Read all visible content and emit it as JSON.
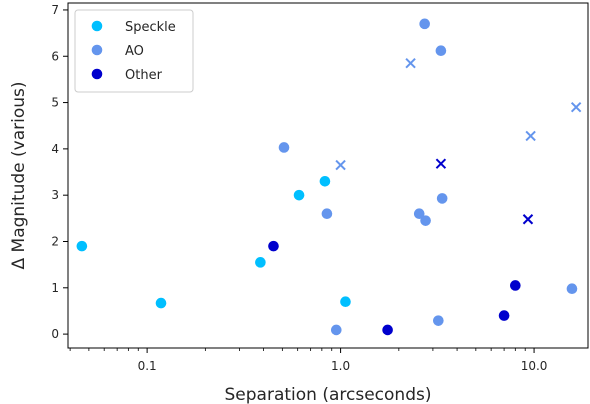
{
  "chart_data": {
    "type": "scatter",
    "xlabel": "Separation (arcseconds)",
    "ylabel": "Δ Magnitude (various)",
    "xscale": "log",
    "xlim": [
      0.039,
      19.0
    ],
    "ylim": [
      -0.3,
      7.15
    ],
    "xticks": [
      {
        "value": 0.1,
        "label": "0.1"
      },
      {
        "value": 1.0,
        "label": "1.0"
      },
      {
        "value": 10.0,
        "label": "10.0"
      }
    ],
    "yticks": [
      {
        "value": 0,
        "label": "0"
      },
      {
        "value": 1,
        "label": "1"
      },
      {
        "value": 2,
        "label": "2"
      },
      {
        "value": 3,
        "label": "3"
      },
      {
        "value": 4,
        "label": "4"
      },
      {
        "value": 5,
        "label": "5"
      },
      {
        "value": 6,
        "label": "6"
      },
      {
        "value": 7,
        "label": "7"
      }
    ],
    "legend_position": "top-left",
    "grid": false,
    "series": [
      {
        "name": "Speckle",
        "color": "#00bfff",
        "marker": "circle",
        "points": [
          {
            "x": 0.046,
            "y": 1.9
          },
          {
            "x": 0.118,
            "y": 0.67
          },
          {
            "x": 0.385,
            "y": 1.55
          },
          {
            "x": 0.61,
            "y": 3.0
          },
          {
            "x": 0.83,
            "y": 3.3
          },
          {
            "x": 1.06,
            "y": 0.7
          }
        ]
      },
      {
        "name": "AO",
        "color": "#6495ed",
        "marker": "circle",
        "points": [
          {
            "x": 0.51,
            "y": 4.03
          },
          {
            "x": 0.85,
            "y": 2.6
          },
          {
            "x": 0.95,
            "y": 0.09
          },
          {
            "x": 2.55,
            "y": 2.6
          },
          {
            "x": 2.72,
            "y": 6.7
          },
          {
            "x": 2.75,
            "y": 2.45
          },
          {
            "x": 3.2,
            "y": 0.29
          },
          {
            "x": 3.3,
            "y": 6.12
          },
          {
            "x": 3.35,
            "y": 2.93
          },
          {
            "x": 15.7,
            "y": 0.98
          }
        ]
      },
      {
        "name": "Other",
        "color": "#0000cd",
        "marker": "circle",
        "points": [
          {
            "x": 0.45,
            "y": 1.9
          },
          {
            "x": 1.75,
            "y": 0.09
          },
          {
            "x": 7.0,
            "y": 0.4
          },
          {
            "x": 8.0,
            "y": 1.05
          }
        ]
      },
      {
        "color": "#6495ed",
        "marker": "x",
        "points": [
          {
            "x": 1.0,
            "y": 3.65
          },
          {
            "x": 2.3,
            "y": 5.85
          },
          {
            "x": 9.6,
            "y": 4.28
          },
          {
            "x": 16.5,
            "y": 4.9
          }
        ]
      },
      {
        "color": "#0000cd",
        "marker": "x",
        "points": [
          {
            "x": 3.3,
            "y": 3.68
          },
          {
            "x": 9.3,
            "y": 2.48
          }
        ]
      }
    ]
  }
}
